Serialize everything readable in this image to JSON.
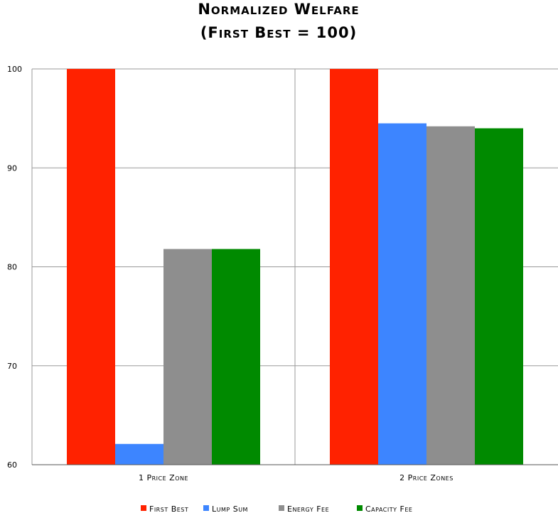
{
  "chart_data": {
    "type": "bar",
    "title_line1": "Normalized Welfare",
    "title_line2": "(First Best = 100)",
    "xlabel": "",
    "ylabel": "",
    "categories": [
      "1 Price Zone",
      "2 Price Zones"
    ],
    "series": [
      {
        "name": "First Best",
        "color": "#ff2200",
        "values": [
          100,
          100
        ]
      },
      {
        "name": "Lump Sum",
        "color": "#3d85ff",
        "values": [
          62.1,
          94.5
        ]
      },
      {
        "name": "Energy Fee",
        "color": "#8e8e8e",
        "values": [
          81.8,
          94.2
        ]
      },
      {
        "name": "Capacity Fee",
        "color": "#008a00",
        "values": [
          81.8,
          94.0
        ]
      }
    ],
    "ylim": [
      60,
      100
    ],
    "yticks": [
      60,
      70,
      80,
      90,
      100
    ],
    "grid": true,
    "legend_position": "bottom"
  }
}
